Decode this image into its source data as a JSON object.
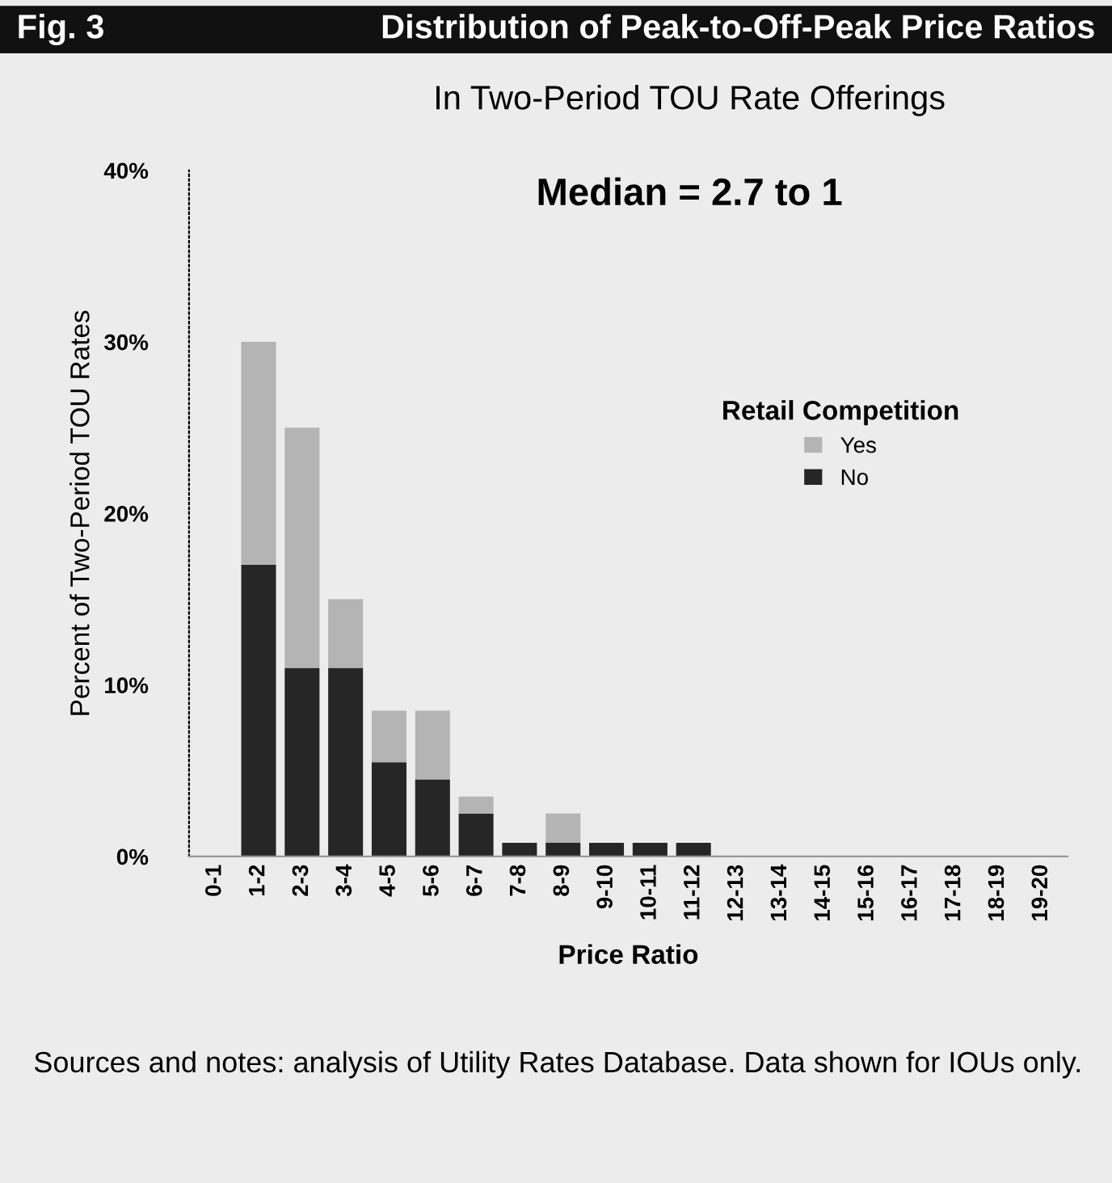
{
  "chart_data": {
    "type": "bar",
    "title": "Distribution of Peak-to-Off-Peak Price Ratios",
    "subtitle": "In Two-Period TOU Rate Offerings",
    "xlabel": "Price Ratio",
    "ylabel": "Percent of Two-Period TOU Rates",
    "legend_title": "Retail Competition",
    "annotations": [
      "Fig. 3",
      "Median = 2.7 to 1",
      "Sources and notes: analysis of Utility Rates Database. Data shown for IOUs only."
    ],
    "categories": [
      "0-1",
      "1-2",
      "2-3",
      "3-4",
      "4-5",
      "5-6",
      "6-7",
      "7-8",
      "8-9",
      "9-10",
      "10-11",
      "11-12",
      "12-13",
      "13-14",
      "14-15",
      "15-16",
      "16-17",
      "17-18",
      "18-19",
      "19-20"
    ],
    "stacked": true,
    "series": [
      {
        "name": "No",
        "color": "#262626",
        "values": [
          0,
          17,
          11,
          11,
          5.5,
          4.5,
          2.5,
          0.8,
          0.8,
          0.8,
          0.8,
          0.8,
          0,
          0,
          0,
          0,
          0,
          0,
          0,
          0
        ]
      },
      {
        "name": "Yes",
        "color": "#b4b4b4",
        "values": [
          0,
          13,
          14,
          4,
          3,
          4,
          1,
          0,
          1.7,
          0,
          0,
          0,
          0,
          0,
          0,
          0,
          0,
          0,
          0,
          0
        ]
      }
    ],
    "ylim": [
      0,
      40
    ],
    "yticks": [
      {
        "value": 0,
        "label": "0%"
      },
      {
        "value": 10,
        "label": "10%"
      },
      {
        "value": 20,
        "label": "20%"
      },
      {
        "value": 30,
        "label": "30%"
      },
      {
        "value": 40,
        "label": "40%"
      }
    ],
    "grid": false,
    "legend": "right"
  }
}
